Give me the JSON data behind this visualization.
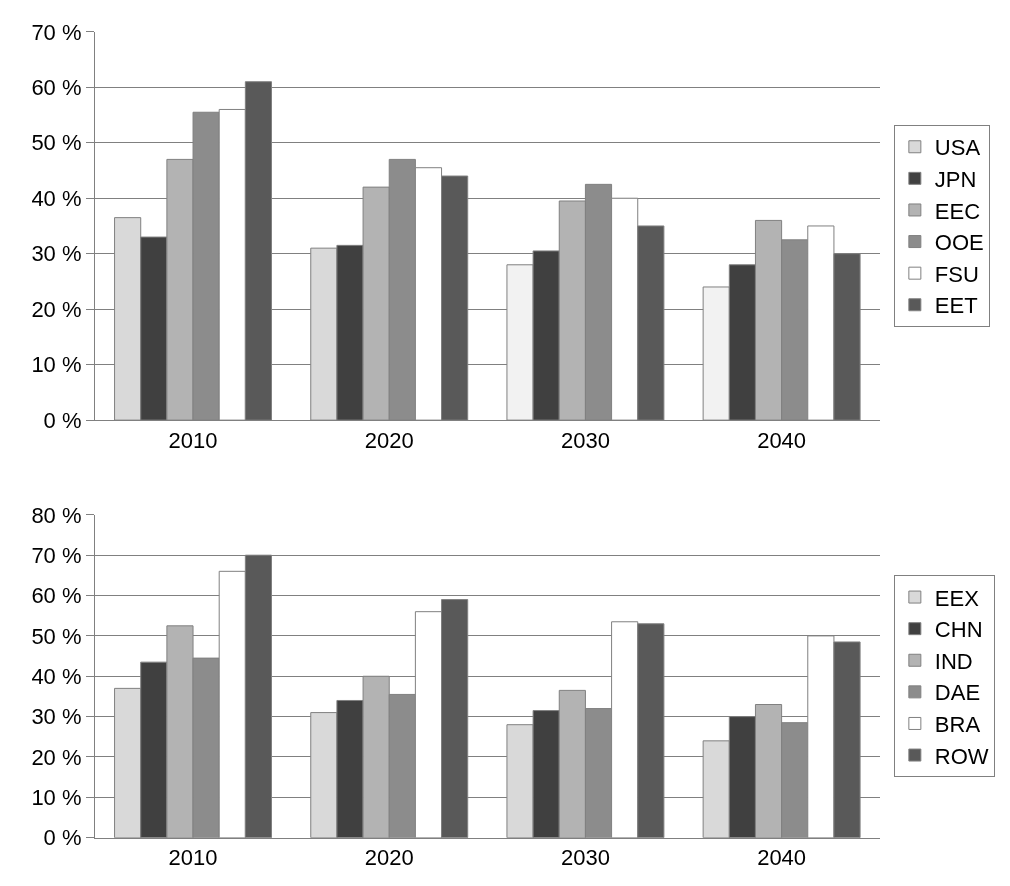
{
  "chart_data": [
    {
      "type": "bar",
      "categories": [
        "2010",
        "2020",
        "2030",
        "2040"
      ],
      "ylim": [
        0,
        70
      ],
      "yticks": [
        {
          "value": 0,
          "label": "0 %"
        },
        {
          "value": 10,
          "label": "10 %"
        },
        {
          "value": 20,
          "label": "20 %"
        },
        {
          "value": 30,
          "label": "30 %"
        },
        {
          "value": 40,
          "label": "40 %"
        },
        {
          "value": 50,
          "label": "50 %"
        },
        {
          "value": 60,
          "label": "60 %"
        },
        {
          "value": 70,
          "label": "70 %"
        }
      ],
      "grid": "y",
      "legend": "right",
      "series": [
        {
          "name": "USA",
          "colors": [
            "#d9d9d9",
            "#d9d9d9",
            "#f2f2f2",
            "#f2f2f2"
          ],
          "values": [
            36.5,
            31,
            28,
            24
          ]
        },
        {
          "name": "JPN",
          "color": "#404040",
          "values": [
            33,
            31.5,
            30.5,
            28
          ]
        },
        {
          "name": "EEC",
          "color": "#b3b3b3",
          "values": [
            47,
            42,
            39.5,
            36
          ]
        },
        {
          "name": "OOE",
          "color": "#8c8c8c",
          "values": [
            55.5,
            47,
            42.5,
            32.5
          ]
        },
        {
          "name": "FSU",
          "color": "#ffffff",
          "values": [
            56,
            45.5,
            40,
            35
          ]
        },
        {
          "name": "EET",
          "color": "#595959",
          "values": [
            61,
            44,
            35,
            30
          ]
        }
      ]
    },
    {
      "type": "bar",
      "categories": [
        "2010",
        "2020",
        "2030",
        "2040"
      ],
      "ylim": [
        0,
        80
      ],
      "yticks": [
        {
          "value": 0,
          "label": "0 %"
        },
        {
          "value": 10,
          "label": "10 %"
        },
        {
          "value": 20,
          "label": "20 %"
        },
        {
          "value": 30,
          "label": "30 %"
        },
        {
          "value": 40,
          "label": "40 %"
        },
        {
          "value": 50,
          "label": "50 %"
        },
        {
          "value": 60,
          "label": "60 %"
        },
        {
          "value": 70,
          "label": "70 %"
        },
        {
          "value": 80,
          "label": "80 %"
        }
      ],
      "grid": "y",
      "legend": "right",
      "series": [
        {
          "name": "EEX",
          "color": "#d9d9d9",
          "values": [
            37,
            31,
            28,
            24
          ]
        },
        {
          "name": "CHN",
          "color": "#404040",
          "values": [
            43.5,
            34,
            31.5,
            30
          ]
        },
        {
          "name": "IND",
          "color": "#b3b3b3",
          "values": [
            52.5,
            40,
            36.5,
            33
          ]
        },
        {
          "name": "DAE",
          "color": "#8c8c8c",
          "values": [
            44.5,
            35.5,
            32,
            28.5
          ]
        },
        {
          "name": "BRA",
          "color": "#ffffff",
          "values": [
            66,
            56,
            53.5,
            50
          ]
        },
        {
          "name": "ROW",
          "color": "#595959",
          "values": [
            70,
            59,
            53,
            48.5
          ]
        }
      ]
    }
  ]
}
